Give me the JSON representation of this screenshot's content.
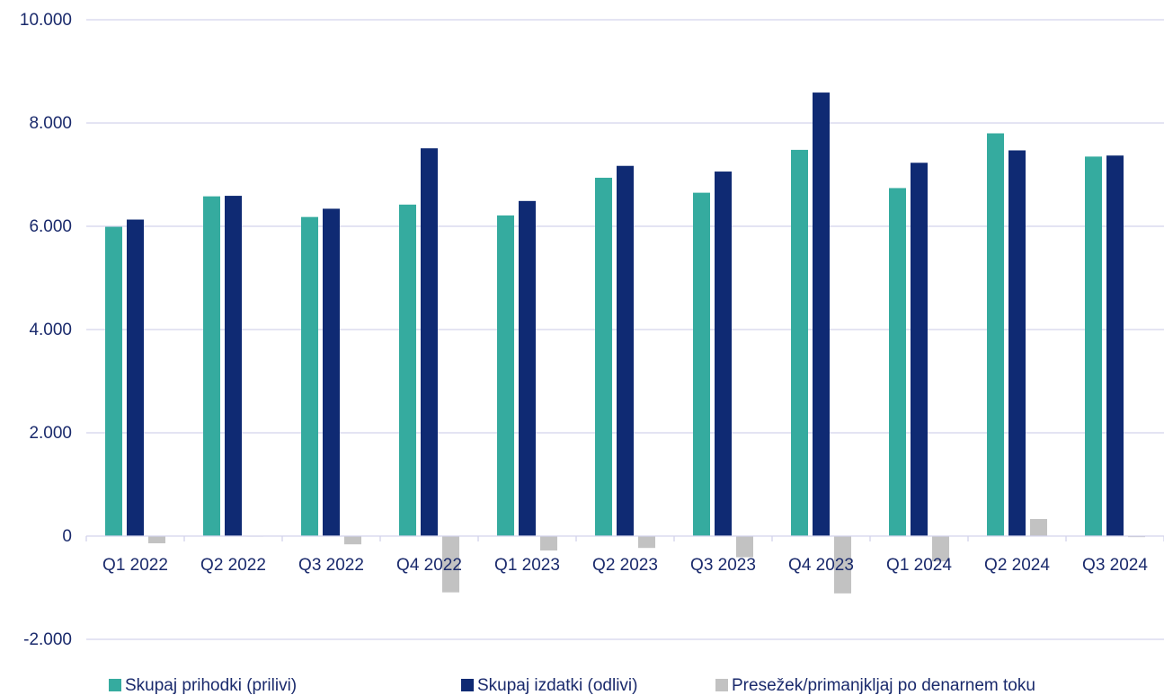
{
  "chart_data": {
    "type": "bar",
    "title": "",
    "xlabel": "",
    "ylabel": "",
    "ylim": [
      -2000,
      10000
    ],
    "yticks": [
      -2000,
      0,
      2000,
      4000,
      6000,
      8000,
      10000
    ],
    "ytick_labels": [
      "-2.000",
      "0",
      "2.000",
      "4.000",
      "6.000",
      "8.000",
      "10.000"
    ],
    "grid": true,
    "legend_position": "bottom",
    "categories": [
      "Q1 2022",
      "Q2 2022",
      "Q3 2022",
      "Q4 2022",
      "Q1 2023",
      "Q2 2023",
      "Q3 2023",
      "Q4 2023",
      "Q1 2024",
      "Q2 2024",
      "Q3 2024"
    ],
    "series": [
      {
        "name": "Skupaj prihodki (prilivi)",
        "color": "#35ab9f",
        "values": [
          5990,
          6580,
          6180,
          6420,
          6210,
          6940,
          6650,
          7480,
          6740,
          7800,
          7350
        ]
      },
      {
        "name": "Skupaj izdatki (odlivi)",
        "color": "#0f2a73",
        "values": [
          6130,
          6590,
          6340,
          7510,
          6490,
          7170,
          7060,
          8590,
          7230,
          7470,
          7370
        ]
      },
      {
        "name": "Presežek/primanjkljaj po denarnem toku",
        "color": "#c2c2c2",
        "values": [
          -140,
          -10,
          -160,
          -1090,
          -280,
          -230,
          -410,
          -1110,
          -490,
          330,
          -20
        ]
      }
    ]
  }
}
